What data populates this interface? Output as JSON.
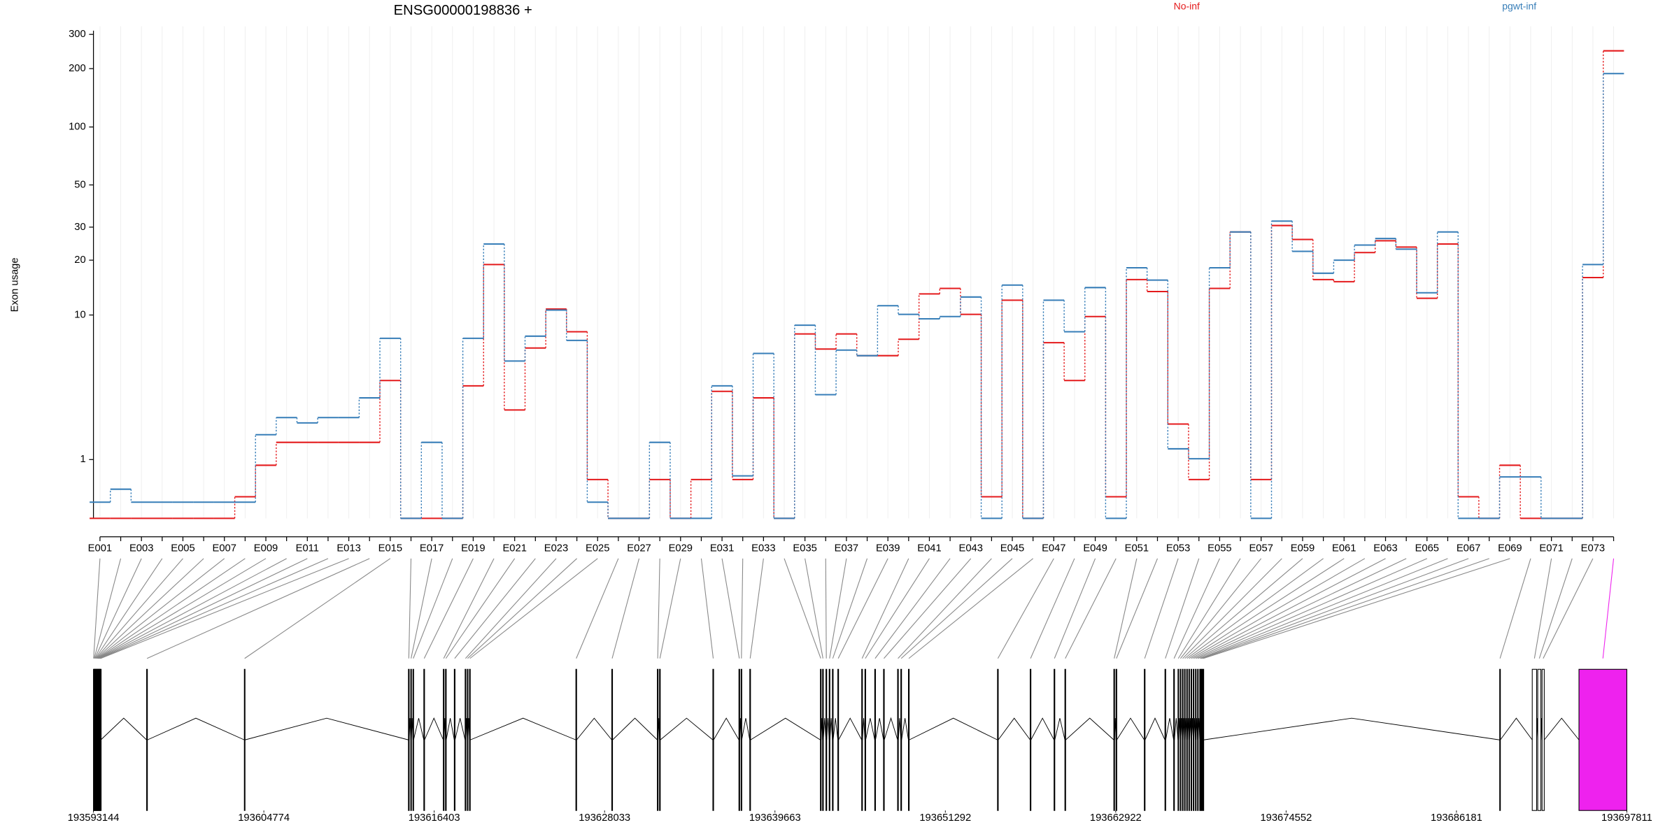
{
  "chart_data": {
    "type": "step",
    "title": "ENSG00000198836 +",
    "ylabel": "Exon usage",
    "yscale": "log1p",
    "ylim": [
      0,
      330
    ],
    "yticks": [
      1,
      10,
      20,
      30,
      50,
      100,
      200,
      300
    ],
    "grid": true,
    "categories": [
      "E001",
      null,
      "E003",
      null,
      "E005",
      null,
      "E007",
      null,
      "E009",
      null,
      "E011",
      null,
      "E013",
      null,
      "E015",
      null,
      "E017",
      null,
      "E019",
      null,
      "E021",
      null,
      "E023",
      null,
      "E025",
      null,
      "E027",
      null,
      "E029",
      null,
      "E031",
      null,
      "E033",
      null,
      "E035",
      null,
      "E037",
      null,
      "E039",
      null,
      "E041",
      null,
      "E043",
      null,
      "E045",
      null,
      "E047",
      null,
      "E049",
      null,
      "E051",
      null,
      "E053",
      null,
      "E055",
      null,
      "E057",
      null,
      "E059",
      null,
      "E061",
      null,
      "E063",
      null,
      "E065",
      null,
      "E067",
      null,
      "E069",
      null,
      "E071",
      null,
      "E073",
      null
    ],
    "series": [
      {
        "name": "No-inf",
        "color": "#e41a1c",
        "values": [
          0,
          0,
          0,
          0,
          0,
          0,
          0,
          0.29,
          0.87,
          1.45,
          1.45,
          1.45,
          1.45,
          1.45,
          4.08,
          0,
          0,
          0,
          3.77,
          18.95,
          2.59,
          6.45,
          10.8,
          8.03,
          0.58,
          0,
          0,
          0.58,
          0,
          0.58,
          3.47,
          0.58,
          3.14,
          0,
          7.8,
          6.36,
          7.8,
          5.81,
          5.81,
          7.26,
          13.1,
          14.05,
          10.08,
          0.29,
          12.1,
          0,
          6.94,
          4.08,
          9.8,
          0.29,
          15.7,
          13.5,
          2.04,
          0.58,
          14.05,
          28.3,
          0.58,
          30.6,
          25.8,
          15.7,
          15.3,
          21.96,
          25.4,
          23.5,
          12.4,
          24.4,
          0.29,
          0,
          0.87,
          0,
          0,
          0,
          16.1,
          247
        ]
      },
      {
        "name": "pgwt-inf",
        "color": "#377eb8",
        "values": [
          0.21,
          0.41,
          0.21,
          0.21,
          0.21,
          0.21,
          0.21,
          0.21,
          1.68,
          2.28,
          2.08,
          2.28,
          2.28,
          3.14,
          7.36,
          0,
          1.45,
          0,
          7.36,
          24.4,
          5.39,
          7.57,
          10.66,
          7.15,
          0.21,
          0,
          0,
          1.45,
          0,
          0,
          3.77,
          0.65,
          5.99,
          0,
          8.75,
          3.3,
          6.27,
          5.81,
          11.27,
          10.08,
          9.52,
          9.8,
          12.6,
          0,
          14.65,
          0,
          12.1,
          8.03,
          14.2,
          0,
          18.2,
          15.6,
          1.27,
          1.02,
          18.2,
          28.3,
          0,
          32.3,
          22.3,
          17,
          20,
          24.1,
          26.1,
          22.9,
          13.3,
          28.3,
          0,
          0,
          0.63,
          0.63,
          0,
          0,
          18.95,
          188.6
        ]
      }
    ],
    "gene_model": {
      "xlim": [
        193593144,
        193697811
      ],
      "xticks": [
        193593144,
        193604774,
        193616403,
        193628033,
        193639663,
        193651292,
        193662922,
        193674552,
        193686181,
        193697811
      ],
      "starts": [
        193593144,
        193593184,
        193593224,
        193593264,
        193593304,
        193593344,
        193593384,
        193593424,
        193593464,
        193593504,
        193593544,
        193593584,
        193593624,
        193596774,
        193603444,
        193614644,
        193614804,
        193614954,
        193615694,
        193617024,
        193617174,
        193617774,
        193618514,
        193618664,
        193618814,
        193626074,
        193628524,
        193631634,
        193631784,
        193635424,
        193637204,
        193637354,
        193637944,
        193642764,
        193642914,
        193643144,
        193643364,
        193643584,
        193643954,
        193645584,
        193645804,
        193646474,
        193647074,
        193648034,
        193648254,
        193648774,
        193654854,
        193657084,
        193658714,
        193659454,
        193662794,
        193662944,
        193664874,
        193666284,
        193666879,
        193667174,
        193667324,
        193667474,
        193667619,
        193667769,
        193667914,
        193668064,
        193668214,
        193668364,
        193668509,
        193668659,
        193668734,
        193668809,
        193668884,
        193689134,
        193691354,
        193691729,
        193692024,
        193694544
      ],
      "ends": [
        193593164,
        193593204,
        193593244,
        193593284,
        193593324,
        193593364,
        193593404,
        193593444,
        193593484,
        193593524,
        193593564,
        193593604,
        193593644,
        193596824,
        193603484,
        193614694,
        193614844,
        193614994,
        193615744,
        193617074,
        193617224,
        193617824,
        193618564,
        193618704,
        193618864,
        193626124,
        193628574,
        193631684,
        193631834,
        193635474,
        193637254,
        193637394,
        193637994,
        193642814,
        193642964,
        193643194,
        193643414,
        193643634,
        193644004,
        193645634,
        193645854,
        193646524,
        193647124,
        193648084,
        193648304,
        193648824,
        193654904,
        193657134,
        193658764,
        193659504,
        193662844,
        193662994,
        193664924,
        193666334,
        193666929,
        193667214,
        193667364,
        193667514,
        193667659,
        193667809,
        193667954,
        193668104,
        193668254,
        193668404,
        193668544,
        193668694,
        193668769,
        193668844,
        193668924,
        193689174,
        193691654,
        193691944,
        193692174,
        193697811
      ],
      "highlight": 73,
      "highlight_color": "#ee22ee"
    }
  }
}
